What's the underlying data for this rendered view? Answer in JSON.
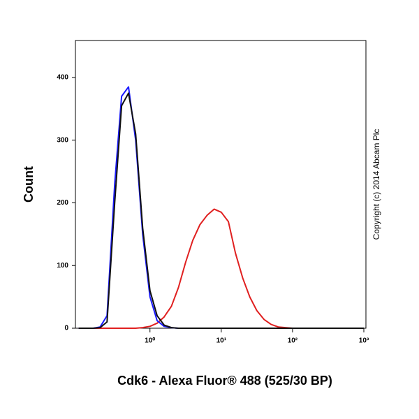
{
  "chart_data": {
    "type": "line",
    "x_label": "Cdk6 - Alexa Fluor® 488 (525/30 BP)",
    "y_label": "Count",
    "annotation": "Copyright (c) 2014 Abcam Plc",
    "x_scale": "log",
    "xlim": [
      0.09,
      1070
    ],
    "xticks": [
      {
        "value": 1,
        "label": "10⁰"
      },
      {
        "value": 10,
        "label": "10¹"
      },
      {
        "value": 100,
        "label": "10²"
      },
      {
        "value": 1000,
        "label": "10³"
      }
    ],
    "ylim": [
      0,
      459
    ],
    "yticks": [
      0,
      100,
      200,
      300,
      400
    ],
    "grid": false,
    "x": [
      0.1,
      0.13,
      0.16,
      0.2,
      0.25,
      0.32,
      0.4,
      0.5,
      0.63,
      0.79,
      1,
      1.26,
      1.58,
      2,
      2.51,
      3.16,
      3.98,
      5.01,
      6.31,
      7.94,
      10,
      12.6,
      15.8,
      20,
      25.1,
      31.6,
      39.8,
      50.1,
      63.1,
      79.4,
      100,
      200,
      500,
      1000
    ],
    "series": [
      {
        "color": "#e02020",
        "values": [
          0,
          0,
          0,
          0,
          0,
          0,
          0,
          0,
          0,
          1,
          3,
          8,
          18,
          35,
          65,
          105,
          140,
          165,
          180,
          190,
          185,
          170,
          120,
          80,
          50,
          28,
          14,
          6,
          2,
          1,
          0,
          0,
          0,
          0
        ]
      },
      {
        "color": "#1a1aff",
        "values": [
          0,
          0,
          0,
          2,
          20,
          230,
          370,
          385,
          300,
          150,
          50,
          12,
          3,
          1,
          0,
          0,
          0,
          0,
          0,
          0,
          0,
          0,
          0,
          0,
          0,
          0,
          0,
          0,
          0,
          0,
          0,
          0,
          0,
          0
        ]
      },
      {
        "color": "#111111",
        "values": [
          0,
          0,
          0,
          1,
          10,
          200,
          355,
          375,
          310,
          160,
          60,
          20,
          5,
          1,
          0,
          0,
          0,
          0,
          0,
          0,
          0,
          0,
          0,
          0,
          0,
          0,
          0,
          0,
          0,
          0,
          0,
          0,
          0,
          0
        ]
      }
    ]
  }
}
